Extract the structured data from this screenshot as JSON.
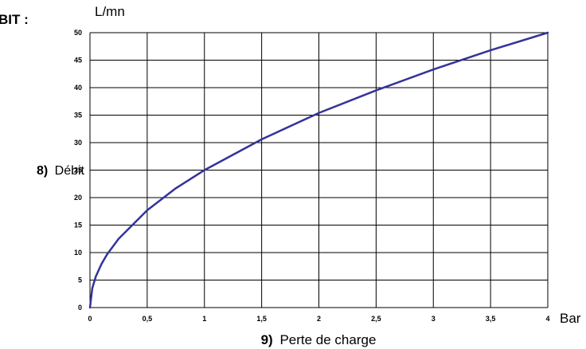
{
  "header_cut_label": "BIT :",
  "chart_data": {
    "type": "line",
    "title": "",
    "y_unit": "L/mn",
    "x_unit": "Bar",
    "ylabel": {
      "num": "8)",
      "text": "Débit"
    },
    "xlabel": {
      "num": "9)",
      "text": "Perte de charge"
    },
    "xlim": [
      0,
      4
    ],
    "ylim": [
      0,
      50
    ],
    "x_ticks": [
      0,
      0.5,
      1,
      1.5,
      2,
      2.5,
      3,
      3.5,
      4
    ],
    "x_tick_labels": [
      "0",
      "0,5",
      "1",
      "1,5",
      "2",
      "2,5",
      "3",
      "3,5",
      "4"
    ],
    "y_ticks": [
      0,
      5,
      10,
      15,
      20,
      25,
      30,
      35,
      40,
      45,
      50
    ],
    "y_tick_labels": [
      "0",
      "5",
      "10",
      "15",
      "20",
      "25",
      "30",
      "35",
      "40",
      "45",
      "50"
    ],
    "grid": true,
    "series": [
      {
        "color": "#333399",
        "x": [
          0,
          0.02,
          0.05,
          0.1,
          0.15,
          0.25,
          0.5,
          0.75,
          1,
          1.5,
          2,
          2.5,
          3,
          3.5,
          4
        ],
        "y": [
          0,
          3.5,
          5.6,
          7.9,
          9.7,
          12.5,
          17.7,
          21.7,
          25,
          30.6,
          35.4,
          39.5,
          43.3,
          46.8,
          50
        ]
      }
    ]
  }
}
